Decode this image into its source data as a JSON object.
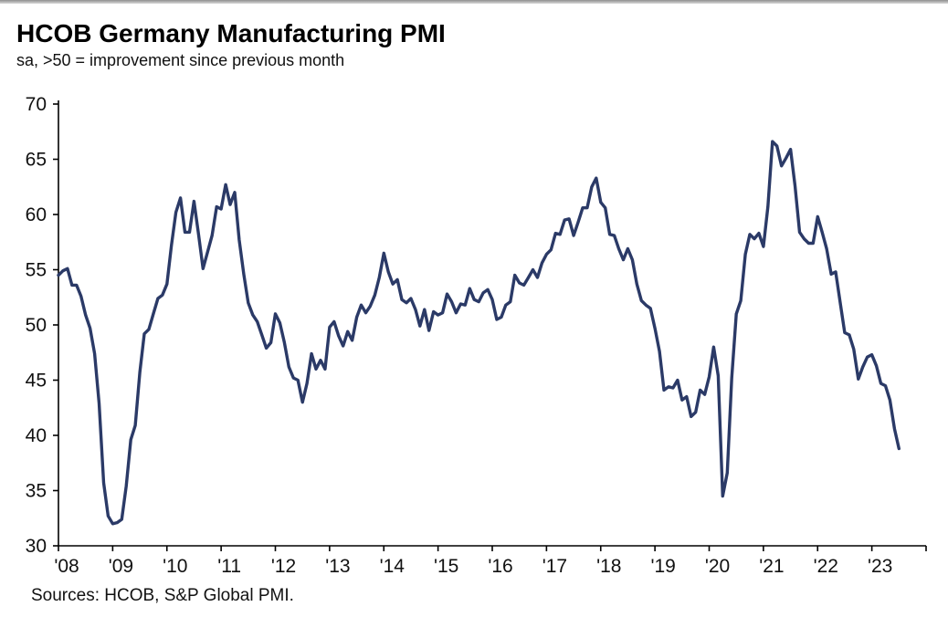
{
  "chart_data": {
    "type": "line",
    "title": "HCOB Germany Manufacturing PMI",
    "subtitle": "sa, >50 = improvement since previous month",
    "source": "Sources: HCOB, S&P Global PMI.",
    "xlabel": "",
    "ylabel": "",
    "xlim": [
      2008,
      2024
    ],
    "ylim": [
      30,
      70
    ],
    "y_ticks": [
      30,
      35,
      40,
      45,
      50,
      55,
      60,
      65,
      70
    ],
    "x_tick_years": [
      2008,
      2009,
      2010,
      2011,
      2012,
      2013,
      2014,
      2015,
      2016,
      2017,
      2018,
      2019,
      2020,
      2021,
      2022,
      2023
    ],
    "x_tick_labels": [
      "'08",
      "'09",
      "'10",
      "'11",
      "'12",
      "'13",
      "'14",
      "'15",
      "'16",
      "'17",
      "'18",
      "'19",
      "'20",
      "'21",
      "'22",
      "'23"
    ],
    "grid": false,
    "legend": "none",
    "frequency": "monthly",
    "start": {
      "year": 2008,
      "month": 1
    },
    "series": [
      {
        "name": "Germany Manufacturing PMI",
        "color": "#2b3a67",
        "values": [
          54.5,
          54.9,
          55.1,
          53.6,
          53.6,
          52.6,
          50.9,
          49.7,
          47.4,
          42.9,
          35.7,
          32.7,
          32.0,
          32.1,
          32.4,
          35.4,
          39.6,
          40.9,
          45.7,
          49.2,
          49.6,
          51.0,
          52.4,
          52.7,
          53.7,
          57.2,
          60.2,
          61.5,
          58.4,
          58.4,
          61.2,
          58.2,
          55.1,
          56.6,
          58.1,
          60.7,
          60.5,
          62.7,
          60.9,
          62.0,
          57.7,
          54.6,
          52.0,
          50.9,
          50.3,
          49.1,
          47.9,
          48.4,
          51.0,
          50.2,
          48.4,
          46.2,
          45.2,
          45.0,
          43.0,
          44.7,
          47.4,
          46.0,
          46.8,
          46.0,
          49.8,
          50.3,
          49.0,
          48.1,
          49.4,
          48.6,
          50.7,
          51.8,
          51.1,
          51.7,
          52.7,
          54.3,
          56.5,
          54.8,
          53.7,
          54.1,
          52.3,
          52.0,
          52.4,
          51.4,
          49.9,
          51.4,
          49.5,
          51.2,
          50.9,
          51.1,
          52.8,
          52.1,
          51.1,
          51.9,
          51.8,
          53.3,
          52.3,
          52.1,
          52.9,
          53.2,
          52.3,
          50.5,
          50.7,
          51.8,
          52.1,
          54.5,
          53.8,
          53.6,
          54.3,
          55.0,
          54.3,
          55.6,
          56.4,
          56.8,
          58.3,
          58.2,
          59.5,
          59.6,
          58.1,
          59.3,
          60.6,
          60.6,
          62.5,
          63.3,
          61.1,
          60.6,
          58.2,
          58.1,
          56.9,
          55.9,
          56.9,
          55.9,
          53.7,
          52.2,
          51.8,
          51.5,
          49.7,
          47.6,
          44.1,
          44.4,
          44.3,
          45.0,
          43.2,
          43.5,
          41.7,
          42.1,
          44.1,
          43.7,
          45.3,
          48.0,
          45.4,
          34.5,
          36.6,
          45.2,
          51.0,
          52.2,
          56.4,
          58.2,
          57.8,
          58.3,
          57.1,
          60.7,
          66.6,
          66.2,
          64.4,
          65.1,
          65.9,
          62.6,
          58.4,
          57.8,
          57.4,
          57.4,
          59.8,
          58.4,
          56.9,
          54.6,
          54.8,
          52.0,
          49.3,
          49.1,
          47.8,
          45.1,
          46.2,
          47.1,
          47.3,
          46.3,
          44.7,
          44.5,
          43.2,
          40.6,
          38.8
        ]
      }
    ]
  }
}
